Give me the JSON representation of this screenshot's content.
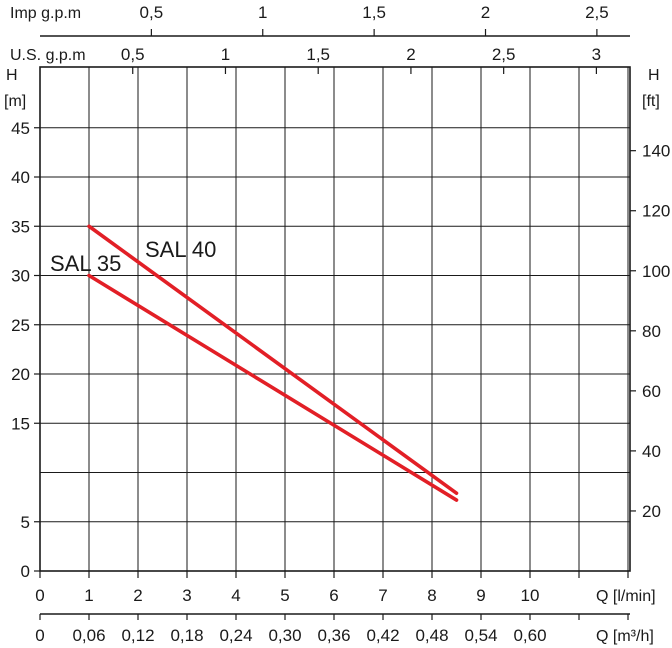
{
  "chart_data": {
    "type": "line",
    "title": "",
    "xlabel": "Q [l/min]",
    "xlabel_m3h": "Q [m³/h]",
    "ylabel_left": "H",
    "ylabel_left_unit": "[m]",
    "ylabel_right": "H",
    "ylabel_right_unit": "[ft]",
    "imp_label": "Imp g.p.m",
    "us_label": "U.S. g.p.m",
    "xlim": [
      0,
      12.5
    ],
    "ylim": [
      0,
      48
    ],
    "grid": true,
    "x_ticks_lmin": [
      "0",
      "1",
      "2",
      "3",
      "4",
      "5",
      "6",
      "7",
      "8",
      "9",
      "10"
    ],
    "x_ticks_m3h": [
      "0",
      "0,06",
      "0,12",
      "0,18",
      "0,24",
      "0,30",
      "0,36",
      "0,42",
      "0,48",
      "0,54",
      "0,60"
    ],
    "y_ticks_m": [
      "0",
      "5",
      "15",
      "20",
      "25",
      "30",
      "35",
      "40",
      "45"
    ],
    "y_ticks_m_values": [
      0,
      5,
      15,
      20,
      25,
      30,
      35,
      40,
      45
    ],
    "y_ticks_ft": [
      "20",
      "40",
      "60",
      "80",
      "100",
      "120",
      "140"
    ],
    "imp_ticks": [
      "0,5",
      "1",
      "1,5",
      "2",
      "2,5"
    ],
    "us_ticks": [
      "0,5",
      "1",
      "1,5",
      "2",
      "2,5",
      "3"
    ],
    "series": [
      {
        "name": "SAL 35",
        "x": [
          1,
          8.5
        ],
        "y": [
          30,
          7.2
        ]
      },
      {
        "name": "SAL 40",
        "x": [
          1,
          8.5
        ],
        "y": [
          35,
          7.9
        ]
      }
    ],
    "line_color": "#e21f26"
  }
}
